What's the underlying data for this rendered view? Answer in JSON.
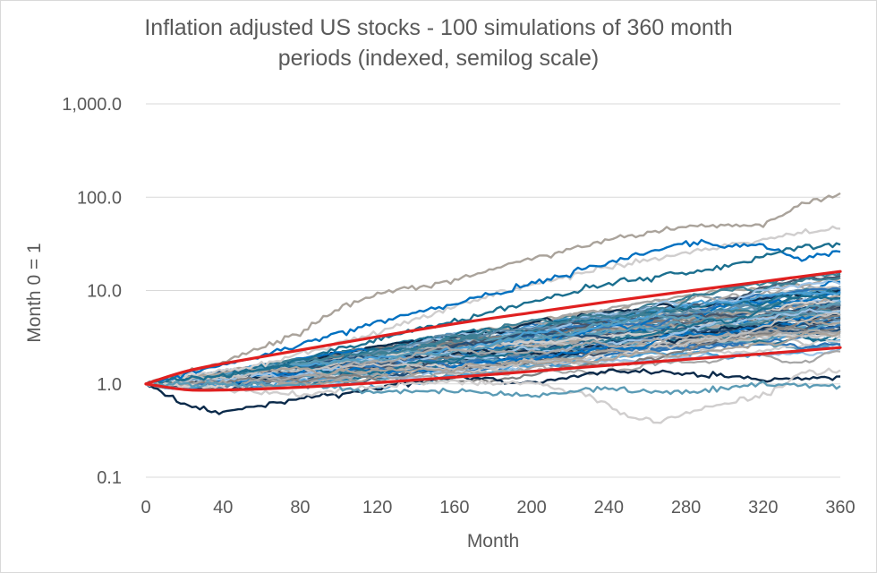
{
  "chart_data": {
    "type": "line",
    "title_line1": "Inflation adjusted US stocks - 100 simulations of 360 month",
    "title_line2": "periods (indexed, semilog scale)",
    "xlabel": "Month",
    "ylabel": "Month 0 = 1",
    "x_ticks": [
      0,
      40,
      80,
      120,
      160,
      200,
      240,
      280,
      320,
      360
    ],
    "y_ticks": [
      {
        "value": 0.1,
        "label": "0.1"
      },
      {
        "value": 1,
        "label": "1.0"
      },
      {
        "value": 10,
        "label": "10.0"
      },
      {
        "value": 100,
        "label": "100.0"
      },
      {
        "value": 1000,
        "label": "1,000.0"
      }
    ],
    "xlim": [
      0,
      360
    ],
    "ylim": [
      0.1,
      1000
    ],
    "y_scale": "log",
    "grid": "horizontal",
    "simulation_count": 100,
    "simulation_months": 360,
    "simulation_colors": [
      "#0b2a4a",
      "#1f4e79",
      "#2e75b6",
      "#0070c0",
      "#4a9fd4",
      "#9dc3e6",
      "#5b9bb5",
      "#1b6f8f",
      "#3d7f94",
      "#7f7f7f",
      "#a6a6a6",
      "#bfbfbf",
      "#aaa39b",
      "#d0cece",
      "#44546a",
      "#5f8ba8"
    ],
    "envelope_color": "#e02020",
    "upper_envelope": [
      {
        "x": 0,
        "y": 1.0
      },
      {
        "x": 20,
        "y": 1.35
      },
      {
        "x": 40,
        "y": 1.65
      },
      {
        "x": 80,
        "y": 2.3
      },
      {
        "x": 120,
        "y": 3.2
      },
      {
        "x": 160,
        "y": 4.4
      },
      {
        "x": 200,
        "y": 5.8
      },
      {
        "x": 240,
        "y": 7.6
      },
      {
        "x": 280,
        "y": 9.8
      },
      {
        "x": 320,
        "y": 12.5
      },
      {
        "x": 360,
        "y": 16.0
      }
    ],
    "lower_envelope": [
      {
        "x": 0,
        "y": 1.0
      },
      {
        "x": 20,
        "y": 0.87
      },
      {
        "x": 40,
        "y": 0.86
      },
      {
        "x": 80,
        "y": 0.92
      },
      {
        "x": 120,
        "y": 1.03
      },
      {
        "x": 160,
        "y": 1.18
      },
      {
        "x": 200,
        "y": 1.36
      },
      {
        "x": 240,
        "y": 1.58
      },
      {
        "x": 280,
        "y": 1.83
      },
      {
        "x": 320,
        "y": 2.1
      },
      {
        "x": 360,
        "y": 2.45
      }
    ],
    "notable_paths": [
      {
        "color": "#aaa39b",
        "points": [
          {
            "x": 0,
            "y": 1.0
          },
          {
            "x": 40,
            "y": 1.7
          },
          {
            "x": 80,
            "y": 3.5
          },
          {
            "x": 100,
            "y": 6.5
          },
          {
            "x": 120,
            "y": 9.0
          },
          {
            "x": 160,
            "y": 13.0
          },
          {
            "x": 200,
            "y": 22.0
          },
          {
            "x": 240,
            "y": 35.0
          },
          {
            "x": 280,
            "y": 48.0
          },
          {
            "x": 320,
            "y": 52.0
          },
          {
            "x": 340,
            "y": 85.0
          },
          {
            "x": 360,
            "y": 110.0
          }
        ]
      },
      {
        "color": "#d0cece",
        "points": [
          {
            "x": 0,
            "y": 1.0
          },
          {
            "x": 60,
            "y": 1.6
          },
          {
            "x": 120,
            "y": 3.6
          },
          {
            "x": 180,
            "y": 9.0
          },
          {
            "x": 240,
            "y": 18.0
          },
          {
            "x": 300,
            "y": 30.0
          },
          {
            "x": 340,
            "y": 42.0
          },
          {
            "x": 360,
            "y": 46.0
          }
        ]
      },
      {
        "color": "#0070c0",
        "points": [
          {
            "x": 0,
            "y": 1.0
          },
          {
            "x": 60,
            "y": 2.0
          },
          {
            "x": 120,
            "y": 4.6
          },
          {
            "x": 180,
            "y": 9.0
          },
          {
            "x": 240,
            "y": 20.0
          },
          {
            "x": 280,
            "y": 32.0
          },
          {
            "x": 300,
            "y": 31.0
          },
          {
            "x": 320,
            "y": 30.0
          },
          {
            "x": 340,
            "y": 22.0
          },
          {
            "x": 360,
            "y": 26.0
          }
        ]
      },
      {
        "color": "#1b6f8f",
        "points": [
          {
            "x": 0,
            "y": 1.0
          },
          {
            "x": 60,
            "y": 1.4
          },
          {
            "x": 120,
            "y": 3.0
          },
          {
            "x": 180,
            "y": 6.0
          },
          {
            "x": 240,
            "y": 12.0
          },
          {
            "x": 300,
            "y": 18.0
          },
          {
            "x": 340,
            "y": 30.0
          },
          {
            "x": 360,
            "y": 31.0
          }
        ]
      },
      {
        "color": "#0b2a4a",
        "points": [
          {
            "x": 0,
            "y": 1.0
          },
          {
            "x": 20,
            "y": 0.6
          },
          {
            "x": 40,
            "y": 0.48
          },
          {
            "x": 60,
            "y": 0.58
          },
          {
            "x": 80,
            "y": 0.7
          },
          {
            "x": 120,
            "y": 0.9
          },
          {
            "x": 160,
            "y": 1.2
          },
          {
            "x": 200,
            "y": 1.0
          },
          {
            "x": 240,
            "y": 1.4
          },
          {
            "x": 280,
            "y": 1.3
          },
          {
            "x": 320,
            "y": 1.1
          },
          {
            "x": 360,
            "y": 1.2
          }
        ]
      },
      {
        "color": "#d0cece",
        "points": [
          {
            "x": 0,
            "y": 1.0
          },
          {
            "x": 40,
            "y": 0.9
          },
          {
            "x": 80,
            "y": 0.75
          },
          {
            "x": 120,
            "y": 0.95
          },
          {
            "x": 160,
            "y": 1.05
          },
          {
            "x": 200,
            "y": 1.0
          },
          {
            "x": 230,
            "y": 0.75
          },
          {
            "x": 250,
            "y": 0.45
          },
          {
            "x": 265,
            "y": 0.38
          },
          {
            "x": 280,
            "y": 0.5
          },
          {
            "x": 320,
            "y": 0.75
          },
          {
            "x": 340,
            "y": 1.3
          },
          {
            "x": 360,
            "y": 1.4
          }
        ]
      },
      {
        "color": "#5b9bb5",
        "points": [
          {
            "x": 0,
            "y": 1.0
          },
          {
            "x": 80,
            "y": 1.0
          },
          {
            "x": 120,
            "y": 0.8
          },
          {
            "x": 160,
            "y": 0.85
          },
          {
            "x": 200,
            "y": 0.75
          },
          {
            "x": 240,
            "y": 0.9
          },
          {
            "x": 280,
            "y": 0.8
          },
          {
            "x": 320,
            "y": 1.0
          },
          {
            "x": 360,
            "y": 0.95
          }
        ]
      }
    ]
  }
}
